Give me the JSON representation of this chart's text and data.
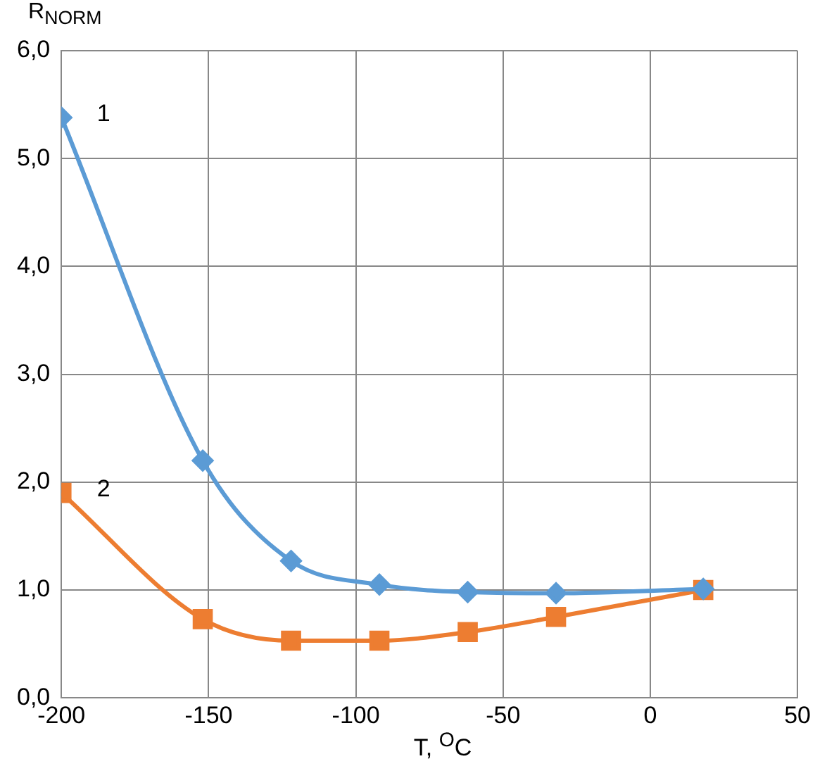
{
  "chart_data": {
    "type": "line",
    "xlabel": "T, $^{O}$C",
    "ylabel": "R$_{NORM}$",
    "series": [
      {
        "name": "1",
        "color": "#5b9bd5",
        "marker": "diamond",
        "x": [
          -200,
          -152,
          -122,
          -92,
          -62,
          -32,
          18
        ],
        "values": [
          5.38,
          2.2,
          1.27,
          1.05,
          0.98,
          0.97,
          1.01
        ]
      },
      {
        "name": "2",
        "color": "#ed7d31",
        "marker": "square",
        "x": [
          -200,
          -152,
          -122,
          -92,
          -62,
          -32,
          18
        ],
        "values": [
          1.9,
          0.73,
          0.53,
          0.53,
          0.61,
          0.75,
          1.0
        ]
      }
    ],
    "xlim": [
      -200,
      50
    ],
    "xticks": [
      -200,
      -150,
      -100,
      -50,
      0,
      50
    ],
    "ylim": [
      0,
      6
    ],
    "yticks": [
      {
        "value": 0,
        "label": "0,0"
      },
      {
        "value": 1,
        "label": "1,0"
      },
      {
        "value": 2,
        "label": "2,0"
      },
      {
        "value": 3,
        "label": "3,0"
      },
      {
        "value": 4,
        "label": "4,0"
      },
      {
        "value": 5,
        "label": "5,0"
      },
      {
        "value": 6,
        "label": "6,0"
      }
    ],
    "grid": true,
    "legend": false,
    "line_style": "solid"
  }
}
